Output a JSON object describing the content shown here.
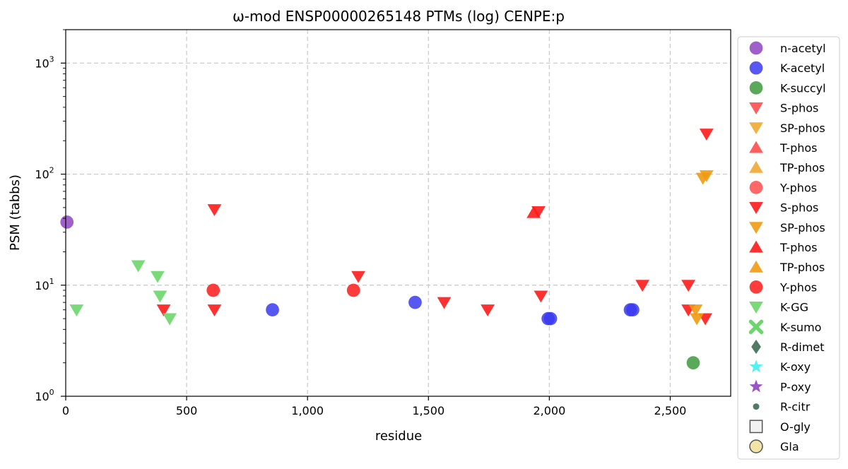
{
  "chart_data": {
    "type": "scatter",
    "title": "ω-mod ENSP00000265148 PTMs (log) CENPE:p",
    "xlabel": "residue",
    "ylabel": "PSM (tabbs)",
    "xlim": [
      0,
      2750
    ],
    "ylim": [
      1,
      2000
    ],
    "yscale": "log",
    "grid": true,
    "legend_placement": "outside-right",
    "x_ticks": [
      {
        "value": 0,
        "label": "0"
      },
      {
        "value": 500,
        "label": "500"
      },
      {
        "value": 1000,
        "label": "1,000"
      },
      {
        "value": 1500,
        "label": "1,500"
      },
      {
        "value": 2000,
        "label": "2,000"
      },
      {
        "value": 2500,
        "label": "2,500"
      }
    ],
    "y_ticks": [
      {
        "value": 1,
        "base": "10",
        "exp": "0"
      },
      {
        "value": 10,
        "base": "10",
        "exp": "1"
      },
      {
        "value": 100,
        "base": "10",
        "exp": "2"
      },
      {
        "value": 1000,
        "base": "10",
        "exp": "3"
      }
    ],
    "series": [
      {
        "name": "n-acetyl",
        "marker": "circle",
        "color": "#8e44c0",
        "points": [
          [
            5,
            37
          ]
        ]
      },
      {
        "name": "K-acetyl",
        "marker": "circle",
        "color": "#3a3af0",
        "points": [
          [
            855,
            6
          ],
          [
            1445,
            7
          ],
          [
            1995,
            5
          ],
          [
            2005,
            5
          ],
          [
            2335,
            6
          ],
          [
            2345,
            6
          ]
        ]
      },
      {
        "name": "K-succyl",
        "marker": "circle",
        "color": "#3d9a3d",
        "points": [
          [
            2595,
            2
          ]
        ]
      },
      {
        "name": "S-phos",
        "marker": "triangle-down",
        "color": "#ff4d4d",
        "points": []
      },
      {
        "name": "SP-phos",
        "marker": "triangle-down",
        "color": "#f0a830",
        "points": []
      },
      {
        "name": "T-phos",
        "marker": "triangle-up",
        "color": "#ff4d4d",
        "points": []
      },
      {
        "name": "TP-phos",
        "marker": "triangle-up",
        "color": "#f0a830",
        "points": []
      },
      {
        "name": "Y-phos",
        "marker": "circle",
        "color": "#ff4d4d",
        "points": []
      },
      {
        "name": "S-phos",
        "marker": "triangle-down",
        "color": "#ff1a1a",
        "points": [
          [
            405,
            6
          ],
          [
            615,
            48
          ],
          [
            615,
            6
          ],
          [
            1210,
            12
          ],
          [
            1565,
            7
          ],
          [
            1745,
            6
          ],
          [
            1955,
            46
          ],
          [
            1965,
            8
          ],
          [
            2385,
            10
          ],
          [
            2575,
            10
          ],
          [
            2575,
            6
          ],
          [
            2645,
            5
          ],
          [
            2650,
            230
          ]
        ]
      },
      {
        "name": "SP-phos",
        "marker": "triangle-down",
        "color": "#f09a10",
        "points": [
          [
            2605,
            6
          ],
          [
            2610,
            5
          ],
          [
            2635,
            92
          ],
          [
            2650,
            97
          ]
        ]
      },
      {
        "name": "T-phos",
        "marker": "triangle-up",
        "color": "#ff1a1a",
        "points": [
          [
            1935,
            45
          ]
        ]
      },
      {
        "name": "TP-phos",
        "marker": "triangle-up",
        "color": "#f09a10",
        "points": []
      },
      {
        "name": "Y-phos",
        "marker": "circle",
        "color": "#ff1a1a",
        "points": [
          [
            610,
            9
          ],
          [
            1190,
            9
          ]
        ]
      },
      {
        "name": "K-GG",
        "marker": "triangle-down",
        "color": "#6cd66c",
        "points": [
          [
            45,
            6
          ],
          [
            300,
            15
          ],
          [
            380,
            12
          ],
          [
            390,
            8
          ],
          [
            430,
            5
          ]
        ]
      },
      {
        "name": "K-sumo",
        "marker": "x",
        "color": "#6cd66c",
        "points": []
      },
      {
        "name": "R-dimet",
        "marker": "diamond",
        "color": "#3d6b52",
        "points": []
      },
      {
        "name": "K-oxy",
        "marker": "star",
        "color": "#40f0f0",
        "points": []
      },
      {
        "name": "P-oxy",
        "marker": "star",
        "color": "#8e44c0",
        "points": []
      },
      {
        "name": "R-citr",
        "marker": "small-circle",
        "color": "#3d6b52",
        "points": []
      },
      {
        "name": "O-gly",
        "marker": "square-open",
        "color": "#555555",
        "points": []
      },
      {
        "name": "Gla",
        "marker": "circle-open",
        "color": "#555555",
        "points": []
      }
    ]
  }
}
